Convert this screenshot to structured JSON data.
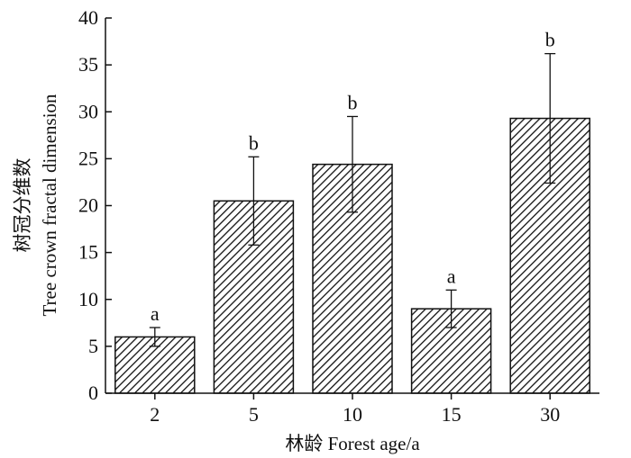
{
  "chart_data": {
    "type": "bar",
    "categories": [
      "2",
      "5",
      "10",
      "15",
      "30"
    ],
    "values": [
      6.0,
      20.5,
      24.4,
      9.0,
      29.3
    ],
    "errors": [
      1.0,
      4.7,
      5.1,
      2.0,
      6.9
    ],
    "significance": [
      "a",
      "b",
      "b",
      "a",
      "b"
    ],
    "xlabel": "林龄 Forest age/a",
    "ylabel_cn": "树冠分维数",
    "ylabel_en": "Tree crown fractal dimension",
    "ylim": [
      0,
      40
    ],
    "yticks": [
      "0",
      "5",
      "10",
      "15",
      "20",
      "25",
      "30",
      "35",
      "40"
    ],
    "bar_fill": "diagonal-hatch",
    "bar_color": "#111111",
    "grid": false,
    "legend": "none"
  }
}
